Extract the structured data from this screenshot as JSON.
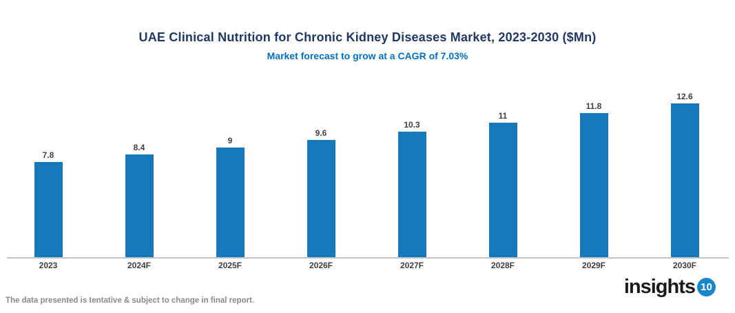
{
  "chart_data": {
    "type": "bar",
    "title": "UAE Clinical Nutrition for Chronic Kidney Diseases Market, 2023-2030 ($Mn)",
    "subtitle": "Market forecast to grow at a CAGR of 7.03%",
    "categories": [
      "2023",
      "2024F",
      "2025F",
      "2026F",
      "2027F",
      "2028F",
      "2029F",
      "2030F"
    ],
    "values": [
      7.8,
      8.4,
      9,
      9.6,
      10.3,
      11,
      11.8,
      12.6
    ],
    "xlabel": "",
    "ylabel": "",
    "ylim": [
      0,
      14
    ],
    "grid": false,
    "legend": false,
    "data_labels": true,
    "bar_color": "#1878BE"
  },
  "colors": {
    "title": "#1F3864",
    "subtitle": "#0070C0",
    "bar": "#1878BE",
    "value_label": "#404040",
    "axis_line": "#C4C4C4",
    "disclaimer": "#8A8A8A",
    "logo_badge": "#1887C9"
  },
  "footer": {
    "disclaimer": "The data presented is tentative & subject to change in final report.",
    "logo_text": "insights",
    "logo_badge": "10"
  }
}
